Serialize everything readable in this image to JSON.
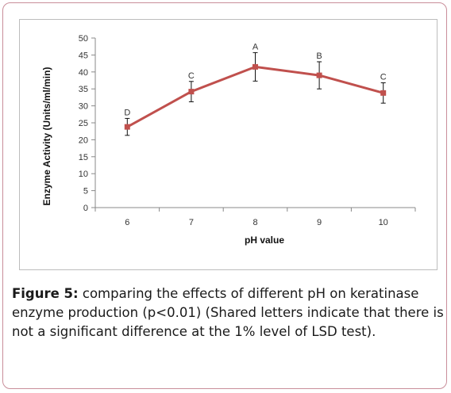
{
  "chart_data": {
    "type": "line",
    "x": [
      "6",
      "7",
      "8",
      "9",
      "10"
    ],
    "series": [
      {
        "values": [
          23.8,
          34.2,
          41.5,
          39.0,
          33.8
        ],
        "error": [
          2.5,
          3.0,
          4.2,
          4.0,
          3.0
        ],
        "letters": [
          "D",
          "C",
          "A",
          "B",
          "C"
        ]
      }
    ],
    "xlabel": "pH  value",
    "ylabel": "Enzyme  Activity  (Units/ml/min)",
    "ylim": [
      0,
      50
    ],
    "yticks": [
      0,
      5,
      10,
      15,
      20,
      25,
      30,
      35,
      40,
      45,
      50
    ],
    "grid": false,
    "line_color": "#c0504d"
  },
  "caption": {
    "lead": "Figure 5:",
    "text": " comparing the effects of different pH on keratinase enzyme production (p<0.01) (Shared letters indicate that there is not a significant difference at the 1% level of LSD test)."
  }
}
